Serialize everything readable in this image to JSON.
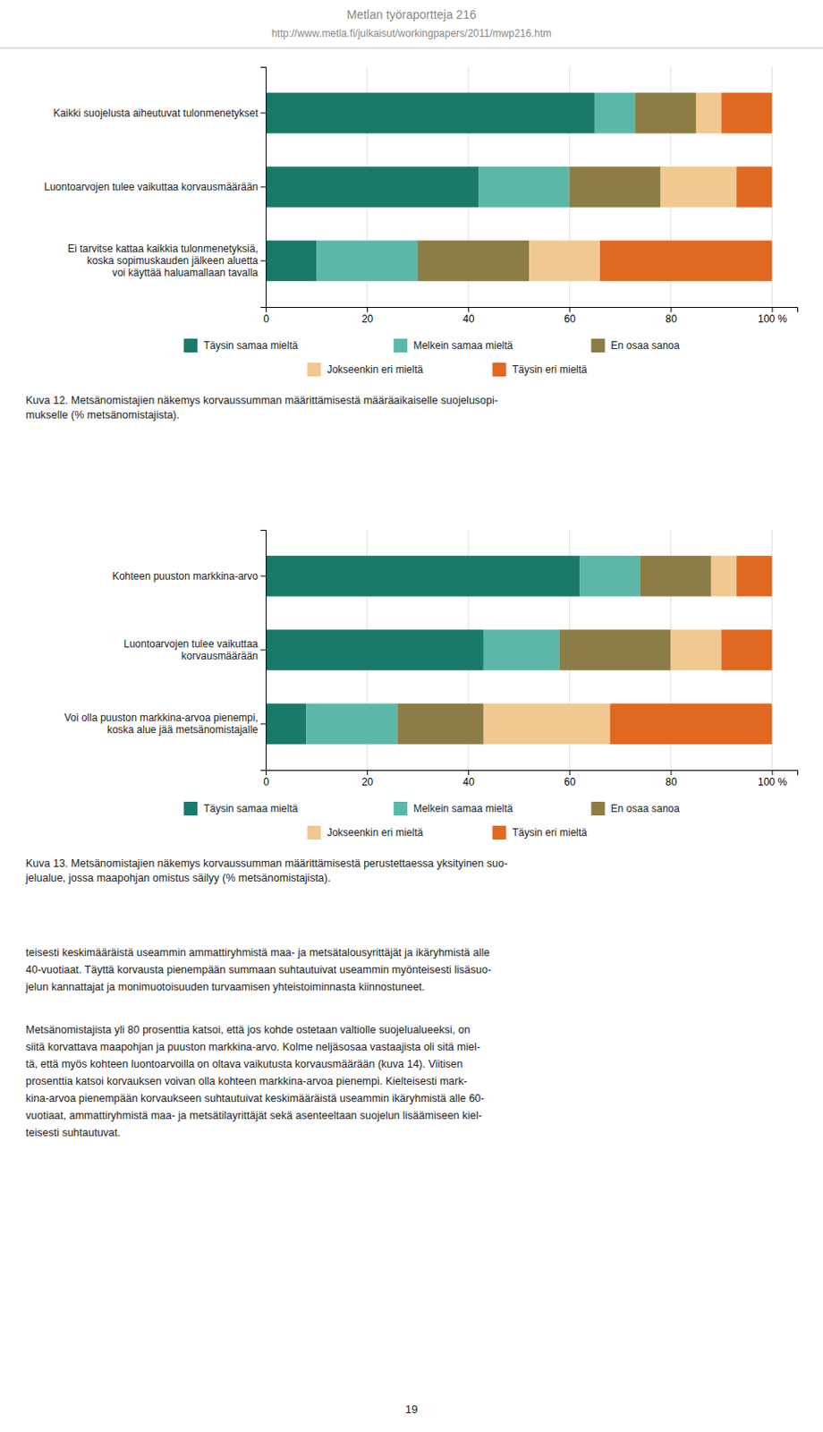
{
  "header_title": "Metlan työraportteja 216",
  "header_url": "http://www.metla.fi/julkaisut/workingpapers/2011/mwp216.htm",
  "chart_data": [
    {
      "type": "bar",
      "orientation": "horizontal",
      "stacked": true,
      "title": "Kuva 12. Metsänomistajien näkemys korvaussumman määrittämisestä määräaikaiselle suojelusopi-\nmukselle (% metsänomistajista).",
      "categories": [
        "Kaikki suojelusta aiheutuvat tulonmenetykset",
        "Luontoarvojen tulee vaikuttaa korvausmäärään",
        "Ei tarvitse kattaa kaikkia tulonmenetyksiä,\nkoska sopimuskauden jälkeen aluetta\nvoi käyttää haluamallaan tavalla"
      ],
      "series": [
        {
          "name": "Täysin samaa mieltä",
          "color": "#1a7a6a",
          "values": [
            65,
            42,
            10
          ]
        },
        {
          "name": "Melkein samaa mieltä",
          "color": "#5bb8a8",
          "values": [
            8,
            18,
            20
          ]
        },
        {
          "name": "En osaa sanoa",
          "color": "#8b7d45",
          "values": [
            12,
            18,
            22
          ]
        },
        {
          "name": "Jokseenkin eri mieltä",
          "color": "#f0c890",
          "values": [
            5,
            15,
            14
          ]
        },
        {
          "name": "Täysin eri mieltä",
          "color": "#e06820",
          "values": [
            10,
            7,
            34
          ]
        }
      ],
      "xlim": [
        0,
        105
      ],
      "xticks": [
        0,
        20,
        40,
        60,
        80,
        {
          "value": 100,
          "label": "100 %"
        }
      ],
      "grid": true,
      "legend": "bottom"
    },
    {
      "type": "bar",
      "orientation": "horizontal",
      "stacked": true,
      "title": "Kuva 13. Metsänomistajien näkemys korvaussumman määrittämisestä perustettaessa yksityinen suo-\njelualue, jossa maapohjan omistus säilyy (% metsänomistajista).",
      "categories": [
        "Kohteen puuston markkina-arvo",
        "Luontoarvojen tulee vaikuttaa\nkorvausmäärään",
        "Voi olla puuston markkina-arvoa pienempi,\nkoska alue jää metsänomistajalle"
      ],
      "series": [
        {
          "name": "Täysin samaa mieltä",
          "color": "#1a7a6a",
          "values": [
            62,
            43,
            8
          ]
        },
        {
          "name": "Melkein samaa mieltä",
          "color": "#5bb8a8",
          "values": [
            12,
            15,
            18
          ]
        },
        {
          "name": "En osaa sanoa",
          "color": "#8b7d45",
          "values": [
            14,
            22,
            17
          ]
        },
        {
          "name": "Jokseenkin eri mieltä",
          "color": "#f0c890",
          "values": [
            5,
            10,
            25
          ]
        },
        {
          "name": "Täysin eri mieltä",
          "color": "#e06820",
          "values": [
            7,
            10,
            32
          ]
        }
      ],
      "xlim": [
        0,
        105
      ],
      "xticks": [
        0,
        20,
        40,
        60,
        80,
        {
          "value": 100,
          "label": "100 %"
        }
      ],
      "grid": true,
      "legend": "bottom"
    }
  ],
  "paragraphs": [
    "teisesti keskimääräistä useammin ammattiryhmistä maa- ja metsätalousyrittäjät ja ikäryhmistä alle\n40-vuotiaat. Täyttä korvausta pienempään summaan suhtautuivat useammin myönteisesti lisäsuo-\njelun kannattajat ja monimuotoisuuden turvaamisen yhteistoiminnasta kiinnostuneet.",
    "Metsänomistajista yli 80 prosenttia katsoi, että jos kohde ostetaan valtiolle suojelualueeksi, on\nsiitä korvattava maapohjan ja puuston markkina-arvo. Kolme neljäsosaa vastaajista oli sitä miel-\ntä, että myös kohteen luontoarvoilla on oltava vaikutusta korvausmäärään (kuva 14). Viitisen\nprosenttia katsoi korvauksen voivan olla kohteen markkina-arvoa pienempi. Kielteisesti mark-\nkina-arvoa pienempään korvaukseen suhtautuivat keskimääräistä useammin ikäryhmistä alle 60-\nvuotiaat, ammattiryhmistä maa- ja metsätilayrittäjät sekä asenteeltaan suojelun lisäämiseen kiel-\nteisesti suhtautuvat."
  ],
  "page_number": "19"
}
